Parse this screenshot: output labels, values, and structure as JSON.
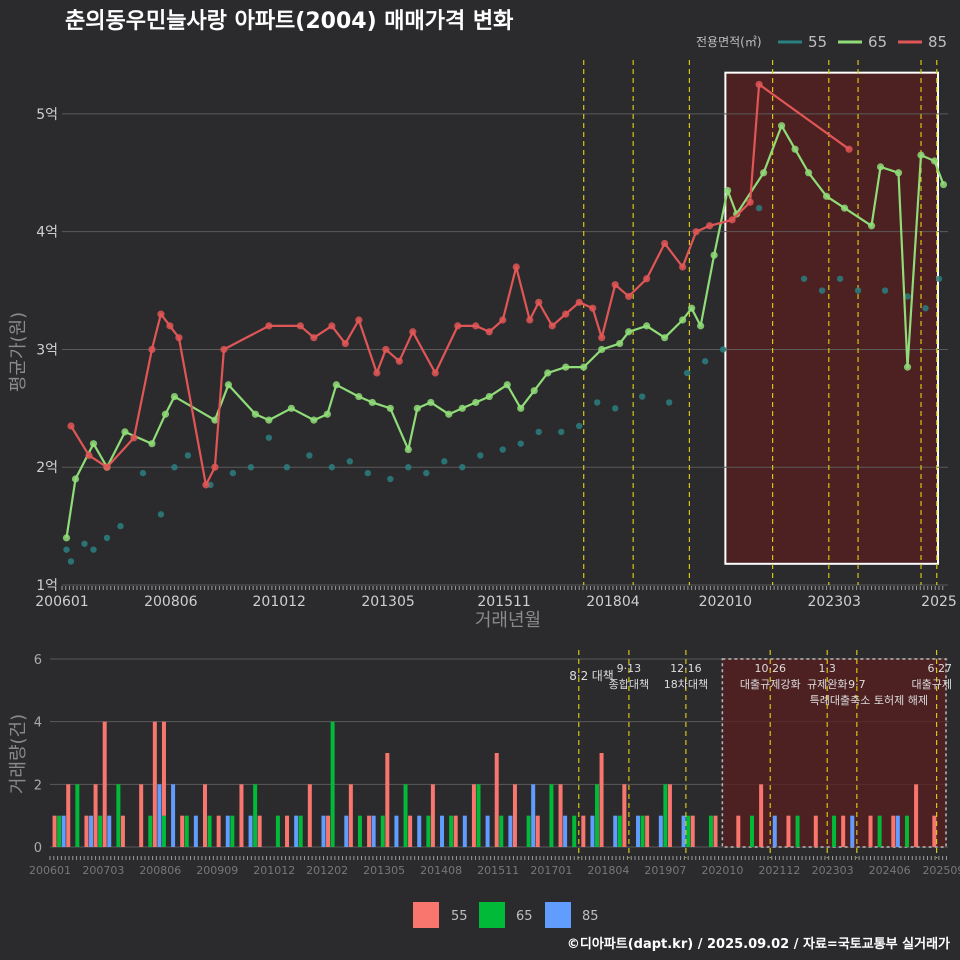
{
  "title": "춘의동우민늘사랑 아파트(2004) 매매가격 변화",
  "footer": "©디아파트(dapt.kr) / 2025.09.02 / 자료=국토교통부 실거래가",
  "colors": {
    "background": "#2b2b2d",
    "series_55_line": "#2a7f80",
    "series_65_line": "#8fdc78",
    "series_85_line": "#e05656",
    "bar_55": "#f8766d",
    "bar_65": "#00ba38",
    "bar_85": "#619cff",
    "policy": "#d6c418",
    "highlight_fill": "#5a1e1e"
  },
  "chart_data": [
    {
      "type": "line",
      "title": "춘의동우민늘사랑 아파트(2004) 매매가격 변화",
      "xlabel": "거래년월",
      "ylabel": "평균가(원)",
      "legend_title": "전용면적(㎡)",
      "legend_position": "top-right",
      "xlim": [
        2006.0,
        2025.7
      ],
      "ylim": [
        1.0,
        5.5
      ],
      "x_ticks": [
        {
          "x": 2006.0,
          "label": "200601"
        },
        {
          "x": 2008.42,
          "label": "200806"
        },
        {
          "x": 2010.83,
          "label": "201012"
        },
        {
          "x": 2013.25,
          "label": "201305"
        },
        {
          "x": 2015.83,
          "label": "201511"
        },
        {
          "x": 2018.25,
          "label": "201804"
        },
        {
          "x": 2020.75,
          "label": "202010"
        },
        {
          "x": 2023.17,
          "label": "202303"
        },
        {
          "x": 2025.5,
          "label": "2025"
        }
      ],
      "y_ticks": [
        {
          "y": 1,
          "label": "1억"
        },
        {
          "y": 2,
          "label": "2억"
        },
        {
          "y": 3,
          "label": "3억"
        },
        {
          "y": 4,
          "label": "4억"
        },
        {
          "y": 5,
          "label": "5억"
        }
      ],
      "policy_lines": [
        2017.6,
        2018.7,
        2019.95,
        2021.8,
        2023.05,
        2023.7,
        2025.1,
        2025.45
      ],
      "highlight_range": {
        "x": [
          2020.75,
          2025.7
        ],
        "y": [
          1.18,
          5.35
        ]
      },
      "series": [
        {
          "name": "55",
          "x": [
            2006.1,
            2006.2,
            2006.5,
            2006.7,
            2007.0,
            2007.3,
            2007.8,
            2008.2,
            2008.5,
            2008.8,
            2009.3,
            2009.8,
            2010.2,
            2010.6,
            2011.0,
            2011.5,
            2012.0,
            2012.4,
            2012.8,
            2013.3,
            2013.7,
            2014.1,
            2014.5,
            2014.9,
            2015.3,
            2015.8,
            2016.2,
            2016.6,
            2017.1,
            2017.5,
            2017.9,
            2018.3,
            2018.9,
            2019.5,
            2019.9,
            2020.3,
            2020.7,
            2021.5,
            2022.5,
            2022.9,
            2023.3,
            2023.7,
            2024.3,
            2024.8,
            2025.2,
            2025.5
          ],
          "values": [
            1.3,
            1.2,
            1.35,
            1.3,
            1.4,
            1.5,
            1.95,
            1.6,
            2.0,
            2.1,
            1.85,
            1.95,
            2.0,
            2.25,
            2.0,
            2.1,
            2.0,
            2.05,
            1.95,
            1.9,
            2.0,
            1.95,
            2.05,
            2.0,
            2.1,
            2.15,
            2.2,
            2.3,
            2.3,
            2.35,
            2.55,
            2.5,
            2.6,
            2.55,
            2.8,
            2.9,
            3.0,
            4.2,
            3.6,
            3.5,
            3.6,
            3.5,
            3.5,
            3.45,
            3.35,
            3.6
          ]
        },
        {
          "name": "65",
          "x": [
            2006.1,
            2006.3,
            2006.7,
            2007.0,
            2007.4,
            2008.0,
            2008.3,
            2008.5,
            2009.4,
            2009.7,
            2010.3,
            2010.6,
            2011.1,
            2011.6,
            2011.9,
            2012.1,
            2012.6,
            2012.9,
            2013.3,
            2013.7,
            2013.9,
            2014.2,
            2014.6,
            2014.9,
            2015.2,
            2015.5,
            2015.9,
            2016.2,
            2016.5,
            2016.8,
            2017.2,
            2017.6,
            2018.0,
            2018.4,
            2018.6,
            2019.0,
            2019.4,
            2019.8,
            2020.0,
            2020.2,
            2020.5,
            2020.8,
            2021.0,
            2021.6,
            2022.0,
            2022.3,
            2022.6,
            2023.0,
            2023.4,
            2024.0,
            2024.2,
            2024.6,
            2024.8,
            2025.1,
            2025.4,
            2025.6
          ],
          "values": [
            1.4,
            1.9,
            2.2,
            2.0,
            2.3,
            2.2,
            2.45,
            2.6,
            2.4,
            2.7,
            2.45,
            2.4,
            2.5,
            2.4,
            2.45,
            2.7,
            2.6,
            2.55,
            2.5,
            2.15,
            2.5,
            2.55,
            2.45,
            2.5,
            2.55,
            2.6,
            2.7,
            2.5,
            2.65,
            2.8,
            2.85,
            2.85,
            3.0,
            3.05,
            3.15,
            3.2,
            3.1,
            3.25,
            3.35,
            3.2,
            3.8,
            4.35,
            4.15,
            4.5,
            4.9,
            4.7,
            4.5,
            4.3,
            4.2,
            4.05,
            4.55,
            4.5,
            2.85,
            4.65,
            4.6,
            4.4
          ]
        },
        {
          "name": "85",
          "x": [
            2006.2,
            2006.6,
            2007.0,
            2007.6,
            2008.0,
            2008.2,
            2008.4,
            2008.6,
            2009.2,
            2009.4,
            2009.6,
            2010.6,
            2011.3,
            2011.6,
            2012.0,
            2012.3,
            2012.6,
            2013.0,
            2013.2,
            2013.5,
            2013.8,
            2014.3,
            2014.8,
            2015.2,
            2015.5,
            2015.8,
            2016.1,
            2016.4,
            2016.6,
            2016.9,
            2017.2,
            2017.5,
            2017.8,
            2018.0,
            2018.3,
            2018.6,
            2019.0,
            2019.4,
            2019.8,
            2020.1,
            2020.4,
            2020.9,
            2021.3,
            2021.5,
            2023.5
          ],
          "values": [
            2.35,
            2.1,
            2.0,
            2.25,
            3.0,
            3.3,
            3.2,
            3.1,
            1.85,
            2.0,
            3.0,
            3.2,
            3.2,
            3.1,
            3.2,
            3.05,
            3.25,
            2.8,
            3.0,
            2.9,
            3.15,
            2.8,
            3.2,
            3.2,
            3.15,
            3.25,
            3.7,
            3.25,
            3.4,
            3.2,
            3.3,
            3.4,
            3.35,
            3.1,
            3.55,
            3.45,
            3.6,
            3.9,
            3.7,
            4.0,
            4.05,
            4.1,
            4.25,
            5.25,
            4.7
          ]
        }
      ]
    },
    {
      "type": "bar",
      "stacked": true,
      "ylabel": "거래량(건)",
      "xlim": [
        2006.0,
        2025.7
      ],
      "ylim": [
        0,
        6
      ],
      "y_ticks": [
        0,
        2,
        4,
        6
      ],
      "x_ticks": [
        {
          "x": 2006.0,
          "label": "200601"
        },
        {
          "x": 2007.17,
          "label": "200703"
        },
        {
          "x": 2008.42,
          "label": "200806"
        },
        {
          "x": 2009.67,
          "label": "200909"
        },
        {
          "x": 2010.92,
          "label": "201012"
        },
        {
          "x": 2012.08,
          "label": "201202"
        },
        {
          "x": 2013.33,
          "label": "201305"
        },
        {
          "x": 2014.58,
          "label": "201408"
        },
        {
          "x": 2015.83,
          "label": "201511"
        },
        {
          "x": 2017.0,
          "label": "201701"
        },
        {
          "x": 2018.25,
          "label": "201804"
        },
        {
          "x": 2019.5,
          "label": "201907"
        },
        {
          "x": 2020.75,
          "label": "202010"
        },
        {
          "x": 2022.0,
          "label": "202112"
        },
        {
          "x": 2023.17,
          "label": "202303"
        },
        {
          "x": 2024.42,
          "label": "202406"
        },
        {
          "x": 2025.6,
          "label": "202509"
        }
      ],
      "highlight_range": {
        "x": [
          2020.75,
          2025.7
        ],
        "y": [
          0,
          6
        ]
      },
      "annotations": [
        {
          "x": 2017.6,
          "date": "8·2",
          "text": "대책"
        },
        {
          "x": 2018.7,
          "date": "9·13",
          "text": "종합대책"
        },
        {
          "x": 2019.95,
          "date": "12·16",
          "text": "18차대책"
        },
        {
          "x": 2021.8,
          "date": "10·26",
          "text": "대출규제강화"
        },
        {
          "x": 2023.05,
          "date": "1·3",
          "text": "규제완화"
        },
        {
          "x": 2023.7,
          "date": "9·7",
          "text": "특례대출축소 토허제 해제"
        },
        {
          "x": 2025.45,
          "date": "6·27",
          "text": "대출규제"
        }
      ],
      "series": [
        {
          "name": "55",
          "x": [
            2006.1,
            2006.4,
            2006.8,
            2007.0,
            2007.2,
            2007.6,
            2008.0,
            2008.3,
            2008.5,
            2008.9,
            2009.4,
            2009.7,
            2010.2,
            2010.6,
            2011.2,
            2011.7,
            2012.1,
            2012.6,
            2013.0,
            2013.4,
            2013.9,
            2014.4,
            2014.9,
            2015.3,
            2015.8,
            2016.2,
            2016.7,
            2017.2,
            2017.7,
            2018.1,
            2018.6,
            2019.1,
            2019.6,
            2020.1,
            2020.6,
            2021.1,
            2021.6,
            2022.2,
            2022.8,
            2023.4,
            2024.0,
            2024.5,
            2025.0,
            2025.4
          ],
          "values": [
            1,
            2,
            1,
            2,
            4,
            1,
            2,
            4,
            3,
            1,
            2,
            1,
            2,
            1,
            1,
            2,
            1,
            2,
            1,
            3,
            1,
            2,
            1,
            2,
            3,
            2,
            1,
            2,
            1,
            3,
            2,
            1,
            2,
            1,
            1,
            1,
            2,
            1,
            1,
            1,
            1,
            1,
            2,
            1
          ]
        },
        {
          "name": "65",
          "x": [
            2006.2,
            2006.6,
            2007.1,
            2007.5,
            2008.2,
            2008.5,
            2009.0,
            2009.5,
            2010.0,
            2010.5,
            2011.0,
            2011.5,
            2012.2,
            2012.8,
            2013.3,
            2013.8,
            2014.3,
            2014.8,
            2015.4,
            2015.9,
            2016.5,
            2017.0,
            2017.5,
            2018.0,
            2018.5,
            2019.0,
            2019.5,
            2020.0,
            2020.5,
            2021.4,
            2022.4,
            2023.2,
            2024.2,
            2024.8
          ],
          "values": [
            1,
            2,
            1,
            2,
            1,
            1,
            1,
            1,
            1,
            2,
            1,
            1,
            4,
            1,
            1,
            2,
            1,
            1,
            2,
            1,
            1,
            2,
            1,
            2,
            1,
            1,
            2,
            1,
            1,
            1,
            1,
            1,
            1,
            1
          ]
        },
        {
          "name": "85",
          "x": [
            2006.3,
            2006.9,
            2007.3,
            2008.4,
            2008.7,
            2009.2,
            2009.9,
            2010.4,
            2011.4,
            2012.0,
            2012.5,
            2013.1,
            2013.6,
            2014.1,
            2014.6,
            2015.1,
            2015.6,
            2016.1,
            2016.6,
            2017.3,
            2017.9,
            2018.4,
            2018.9,
            2019.4,
            2019.9,
            2021.9,
            2023.6,
            2024.6
          ],
          "values": [
            1,
            1,
            1,
            2,
            2,
            1,
            1,
            1,
            1,
            1,
            1,
            1,
            1,
            1,
            1,
            1,
            1,
            1,
            2,
            1,
            1,
            1,
            1,
            1,
            1,
            1,
            1,
            1
          ]
        }
      ]
    }
  ]
}
